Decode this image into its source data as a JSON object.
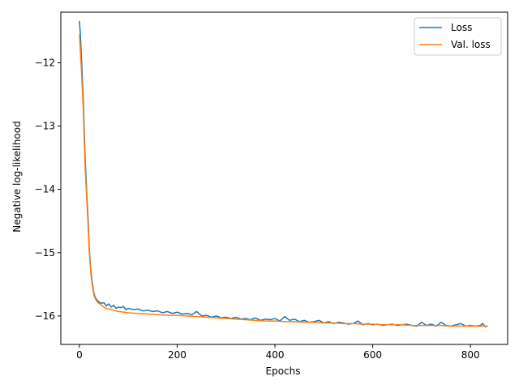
{
  "chart_data": {
    "type": "line",
    "title": "",
    "xlabel": "Epochs",
    "ylabel": "Negative log-likelihood",
    "xlim": [
      -38,
      876
    ],
    "ylim": [
      -16.45,
      -11.2
    ],
    "xticks": [
      0,
      200,
      400,
      600,
      800
    ],
    "xtick_labels": [
      "0",
      "200",
      "400",
      "600",
      "800"
    ],
    "yticks": [
      -12,
      -13,
      -14,
      -15,
      -16
    ],
    "ytick_labels": [
      "−12",
      "−13",
      "−14",
      "−15",
      "−16"
    ],
    "grid": false,
    "legend_position": "top-right",
    "series": [
      {
        "name": "Loss",
        "color": "#1f77b4",
        "x": [
          0,
          2,
          5,
          8,
          10,
          12,
          15,
          18,
          20,
          23,
          26,
          29,
          32,
          35,
          38,
          40,
          45,
          50,
          55,
          60,
          65,
          70,
          75,
          80,
          85,
          90,
          95,
          100,
          110,
          120,
          130,
          140,
          150,
          160,
          170,
          180,
          190,
          200,
          210,
          220,
          230,
          240,
          250,
          260,
          270,
          280,
          290,
          300,
          310,
          320,
          330,
          340,
          350,
          360,
          370,
          380,
          390,
          400,
          410,
          420,
          430,
          440,
          450,
          460,
          470,
          480,
          490,
          500,
          510,
          520,
          530,
          540,
          550,
          560,
          570,
          580,
          590,
          600,
          610,
          620,
          630,
          640,
          650,
          660,
          670,
          680,
          690,
          700,
          710,
          720,
          730,
          740,
          750,
          760,
          770,
          780,
          790,
          800,
          810,
          820,
          825,
          830,
          835
        ],
        "y": [
          -11.34,
          -11.55,
          -12.05,
          -12.6,
          -13.1,
          -13.55,
          -14.05,
          -14.5,
          -14.9,
          -15.25,
          -15.45,
          -15.62,
          -15.7,
          -15.74,
          -15.76,
          -15.78,
          -15.8,
          -15.79,
          -15.84,
          -15.81,
          -15.86,
          -15.83,
          -15.88,
          -15.86,
          -15.87,
          -15.85,
          -15.9,
          -15.88,
          -15.9,
          -15.89,
          -15.92,
          -15.91,
          -15.93,
          -15.92,
          -15.95,
          -15.93,
          -15.96,
          -15.94,
          -15.97,
          -15.96,
          -15.98,
          -15.93,
          -16.0,
          -15.99,
          -16.02,
          -16.0,
          -16.03,
          -16.02,
          -16.04,
          -16.02,
          -16.05,
          -16.04,
          -16.06,
          -16.03,
          -16.07,
          -16.05,
          -16.06,
          -16.04,
          -16.08,
          -16.01,
          -16.07,
          -16.05,
          -16.09,
          -16.07,
          -16.1,
          -16.09,
          -16.07,
          -16.11,
          -16.09,
          -16.12,
          -16.1,
          -16.11,
          -16.13,
          -16.12,
          -16.08,
          -16.14,
          -16.12,
          -16.14,
          -16.13,
          -16.15,
          -16.14,
          -16.13,
          -16.15,
          -16.14,
          -16.13,
          -16.15,
          -16.16,
          -16.1,
          -16.15,
          -16.13,
          -16.16,
          -16.1,
          -16.15,
          -16.16,
          -16.14,
          -16.12,
          -16.16,
          -16.15,
          -16.16,
          -16.15,
          -16.12,
          -16.17,
          -16.16
        ]
      },
      {
        "name": "Val. loss",
        "color": "#ff7f0e",
        "x": [
          0,
          2,
          5,
          8,
          10,
          12,
          15,
          18,
          20,
          23,
          26,
          29,
          32,
          35,
          38,
          40,
          45,
          50,
          55,
          60,
          70,
          80,
          90,
          100,
          120,
          140,
          160,
          180,
          200,
          220,
          240,
          260,
          280,
          300,
          320,
          340,
          360,
          380,
          400,
          420,
          440,
          460,
          480,
          500,
          520,
          540,
          560,
          580,
          600,
          620,
          640,
          660,
          680,
          700,
          720,
          740,
          760,
          780,
          800,
          820,
          835
        ],
        "y": [
          -11.55,
          -11.8,
          -12.25,
          -12.75,
          -13.25,
          -13.7,
          -14.15,
          -14.6,
          -14.95,
          -15.3,
          -15.5,
          -15.65,
          -15.72,
          -15.76,
          -15.79,
          -15.8,
          -15.83,
          -15.86,
          -15.88,
          -15.89,
          -15.91,
          -15.93,
          -15.94,
          -15.95,
          -15.96,
          -15.97,
          -15.98,
          -15.99,
          -15.99,
          -16.0,
          -16.01,
          -16.02,
          -16.03,
          -16.04,
          -16.05,
          -16.06,
          -16.07,
          -16.08,
          -16.08,
          -16.09,
          -16.09,
          -16.1,
          -16.1,
          -16.11,
          -16.11,
          -16.12,
          -16.12,
          -16.13,
          -16.13,
          -16.14,
          -16.14,
          -16.14,
          -16.15,
          -16.15,
          -16.15,
          -16.15,
          -16.16,
          -16.16,
          -16.16,
          -16.16,
          -16.16
        ]
      }
    ]
  }
}
